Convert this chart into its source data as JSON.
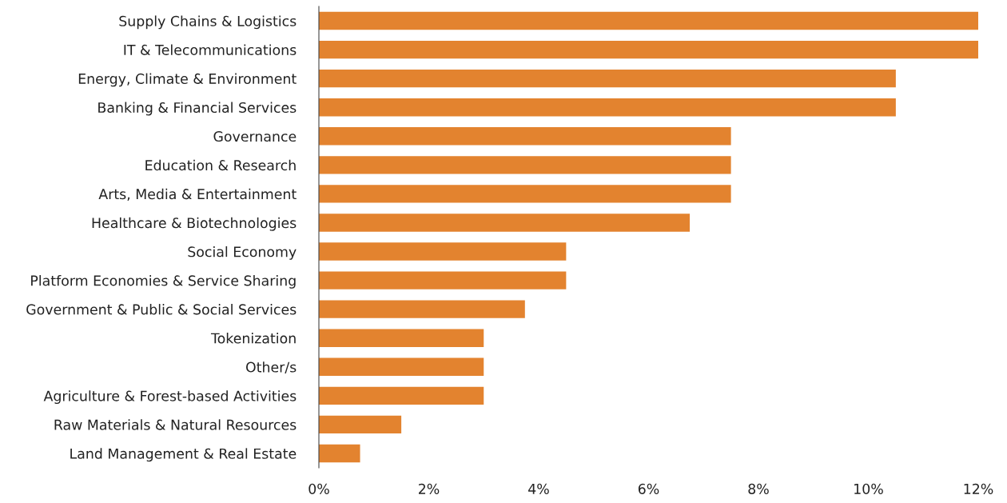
{
  "chart_data": {
    "type": "bar",
    "orientation": "horizontal",
    "categories": [
      "Supply Chains & Logistics",
      "IT & Telecommunications",
      "Energy, Climate & Environment",
      "Banking & Financial Services",
      "Governance",
      "Education & Research",
      "Arts, Media & Entertainment",
      "Healthcare & Biotechnologies",
      "Social Economy",
      "Platform Economies & Service Sharing",
      "Government & Public & Social Services",
      "Tokenization",
      "Other/s",
      "Agriculture & Forest-based Activities",
      "Raw Materials & Natural Resources",
      "Land Management & Real Estate"
    ],
    "values": [
      12,
      12,
      10.5,
      10.5,
      7.5,
      7.5,
      7.5,
      6.75,
      4.5,
      4.5,
      3.75,
      3,
      3,
      3,
      1.5,
      0.75
    ],
    "color": "#e3832f",
    "xlim": [
      0,
      12
    ],
    "xticks": [
      {
        "value": 0,
        "label": "0%"
      },
      {
        "value": 2,
        "label": "2%"
      },
      {
        "value": 4,
        "label": "4%"
      },
      {
        "value": 6,
        "label": "6%"
      },
      {
        "value": 8,
        "label": "8%"
      },
      {
        "value": 10,
        "label": "10%"
      },
      {
        "value": 12,
        "label": "12%"
      }
    ],
    "grid": false,
    "legend": false
  }
}
